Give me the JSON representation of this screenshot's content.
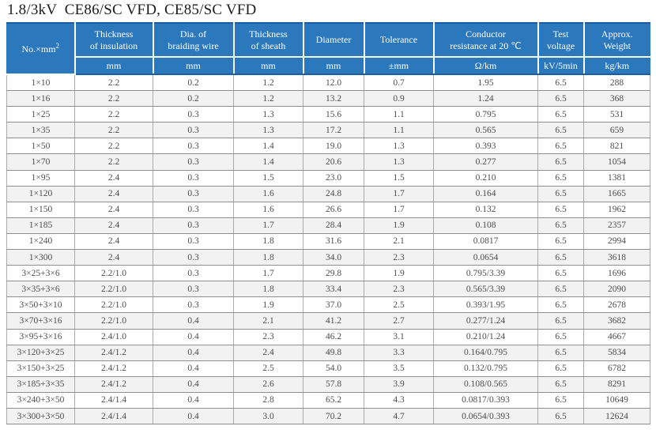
{
  "page": {
    "title": "1.8/3kV  CE86/SC VFD, CE85/SC VFD"
  },
  "colors": {
    "header_bg": "#2b78bd",
    "header_text": "#ffffff",
    "header_edge": "#1d5c9e",
    "row_stripe": "#f2f2f2",
    "row_plain": "#ffffff",
    "cell_text": "#4d4d4d"
  },
  "table": {
    "first_column": {
      "label": "No.×mm",
      "sup": "2"
    },
    "columns": [
      {
        "label": "Thickness\nof insulation",
        "unit": "mm"
      },
      {
        "label": "Dia. of\nbraiding wire",
        "unit": "mm"
      },
      {
        "label": "Thickness\nof sheath",
        "unit": "mm"
      },
      {
        "label": "Diameter",
        "unit": "mm"
      },
      {
        "label": "Tolerance",
        "unit": "±mm"
      },
      {
        "label": "Conductor\nresistance at 20 ℃",
        "unit": "Ω/km"
      },
      {
        "label": "Test\nvoltage",
        "unit": "kV/5min"
      },
      {
        "label": "Approx.\nWeight",
        "unit": "kg/km"
      }
    ],
    "rows": [
      [
        "1×10",
        "2.2",
        "0.2",
        "1.2",
        "12.0",
        "0.7",
        "1.95",
        "6.5",
        "288"
      ],
      [
        "1×16",
        "2.2",
        "0.2",
        "1.2",
        "13.2",
        "0.9",
        "1.24",
        "6.5",
        "368"
      ],
      [
        "1×25",
        "2.2",
        "0.3",
        "1.3",
        "15.6",
        "1.1",
        "0.795",
        "6.5",
        "531"
      ],
      [
        "1×35",
        "2.2",
        "0.3",
        "1.3",
        "17.2",
        "1.1",
        "0.565",
        "6.5",
        "659"
      ],
      [
        "1×50",
        "2.2",
        "0.3",
        "1.4",
        "19.0",
        "1.3",
        "0.393",
        "6.5",
        "821"
      ],
      [
        "1×70",
        "2.2",
        "0.3",
        "1.4",
        "20.6",
        "1.3",
        "0.277",
        "6.5",
        "1054"
      ],
      [
        "1×95",
        "2.4",
        "0.3",
        "1.5",
        "23.0",
        "1.5",
        "0.210",
        "6.5",
        "1381"
      ],
      [
        "1×120",
        "2.4",
        "0.3",
        "1.6",
        "24.8",
        "1.7",
        "0.164",
        "6.5",
        "1665"
      ],
      [
        "1×150",
        "2.4",
        "0.3",
        "1.6",
        "26.6",
        "1.7",
        "0.132",
        "6.5",
        "1962"
      ],
      [
        "1×185",
        "2.4",
        "0.3",
        "1.7",
        "28.4",
        "1.9",
        "0.108",
        "6.5",
        "2357"
      ],
      [
        "1×240",
        "2.4",
        "0.3",
        "1.8",
        "31.6",
        "2.1",
        "0.0817",
        "6.5",
        "2994"
      ],
      [
        "1×300",
        "2.4",
        "0.3",
        "1.8",
        "34.0",
        "2.3",
        "0.0654",
        "6.5",
        "3618"
      ],
      [
        "3×25+3×6",
        "2.2/1.0",
        "0.3",
        "1.7",
        "29.8",
        "1.9",
        "0.795/3.39",
        "6.5",
        "1696"
      ],
      [
        "3×35+3×6",
        "2.2/1.0",
        "0.3",
        "1.8",
        "33.4",
        "2.3",
        "0.565/3.39",
        "6.5",
        "2090"
      ],
      [
        "3×50+3×10",
        "2.2/1.0",
        "0.3",
        "1.9",
        "37.0",
        "2.5",
        "0.393/1.95",
        "6.5",
        "2678"
      ],
      [
        "3×70+3×16",
        "2.2/1.0",
        "0.4",
        "2.1",
        "41.2",
        "2.7",
        "0.277/1.24",
        "6.5",
        "3682"
      ],
      [
        "3×95+3×16",
        "2.4/1.0",
        "0.4",
        "2.3",
        "46.2",
        "3.1",
        "0.210/1.24",
        "6.5",
        "4667"
      ],
      [
        "3×120+3×25",
        "2.4/1.2",
        "0.4",
        "2.4",
        "49.8",
        "3.3",
        "0.164/0.795",
        "6.5",
        "5834"
      ],
      [
        "3×150+3×25",
        "2.4/1.2",
        "0.4",
        "2.5",
        "54.0",
        "3.5",
        "0.132/0.795",
        "6.5",
        "6782"
      ],
      [
        "3×185+3×35",
        "2.4/1.2",
        "0.4",
        "2.6",
        "57.8",
        "3.9",
        "0.108/0.565",
        "6.5",
        "8291"
      ],
      [
        "3×240+3×50",
        "2.4/1.4",
        "0.4",
        "2.8",
        "65.2",
        "4.3",
        "0.0817/0.393",
        "6.5",
        "10649"
      ],
      [
        "3×300+3×50",
        "2.4/1.4",
        "0.4",
        "3.0",
        "70.2",
        "4.7",
        "0.0654/0.393",
        "6.5",
        "12624"
      ]
    ]
  }
}
